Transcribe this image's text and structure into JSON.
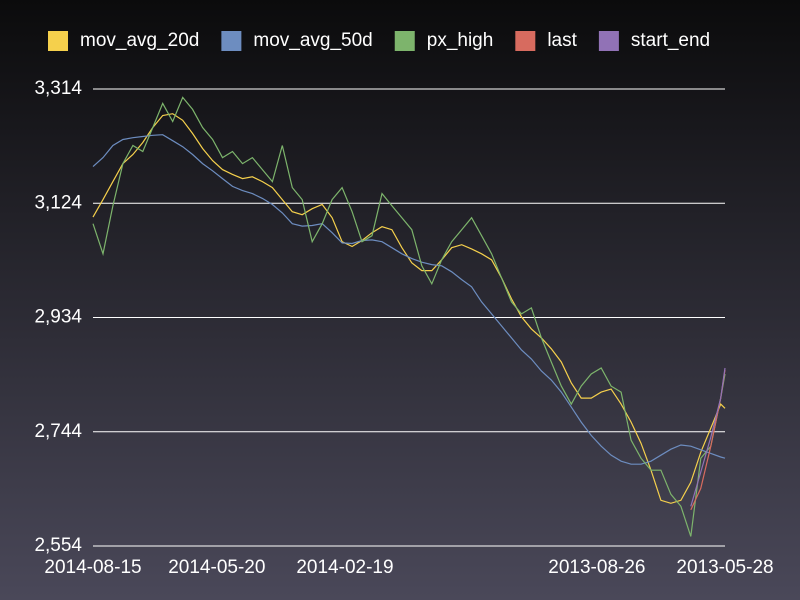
{
  "chart_data": {
    "type": "line",
    "x": [
      "2014-08-15",
      "2014-08-08",
      "2014-08-01",
      "2014-07-25",
      "2014-07-18",
      "2014-07-11",
      "2014-07-04",
      "2014-06-27",
      "2014-06-20",
      "2014-06-13",
      "2014-06-06",
      "2014-05-30",
      "2014-05-23",
      "2014-05-16",
      "2014-05-09",
      "2014-05-02",
      "2014-04-25",
      "2014-04-18",
      "2014-04-11",
      "2014-04-04",
      "2014-03-28",
      "2014-03-21",
      "2014-03-14",
      "2014-03-07",
      "2014-02-28",
      "2014-02-21",
      "2014-02-14",
      "2014-02-07",
      "2014-01-31",
      "2014-01-24",
      "2014-01-17",
      "2014-01-10",
      "2014-01-03",
      "2013-12-27",
      "2013-12-20",
      "2013-12-13",
      "2013-12-06",
      "2013-11-29",
      "2013-11-22",
      "2013-11-15",
      "2013-11-08",
      "2013-11-01",
      "2013-10-25",
      "2013-10-18",
      "2013-10-11",
      "2013-10-04",
      "2013-09-27",
      "2013-09-20",
      "2013-09-13",
      "2013-09-06",
      "2013-08-30",
      "2013-08-23",
      "2013-08-16",
      "2013-08-09",
      "2013-08-02",
      "2013-07-26",
      "2013-07-19",
      "2013-07-12",
      "2013-07-05",
      "2013-06-28",
      "2013-06-21",
      "2013-06-14",
      "2013-06-07",
      "2013-05-31",
      "2013-05-28"
    ],
    "xlim": [
      "2014-08-15",
      "2013-05-28"
    ],
    "xticks": [
      "2014-08-15",
      "2014-05-20",
      "2014-02-19",
      "2013-08-26",
      "2013-05-28"
    ],
    "ylim": [
      2554,
      3314
    ],
    "yticks": [
      {
        "value": 2554,
        "label": "2,554"
      },
      {
        "value": 2744,
        "label": "2,744"
      },
      {
        "value": 2934,
        "label": "2,934"
      },
      {
        "value": 3124,
        "label": "3,124"
      },
      {
        "value": 3314,
        "label": "3,314"
      }
    ],
    "grid": true,
    "legend": "top",
    "series": [
      {
        "name": "mov_avg_20d",
        "color": "#f5d04c",
        "values": [
          3101,
          3130,
          3160,
          3190,
          3205,
          3225,
          3250,
          3270,
          3273,
          3262,
          3240,
          3215,
          3195,
          3180,
          3172,
          3165,
          3168,
          3160,
          3150,
          3130,
          3110,
          3105,
          3115,
          3122,
          3100,
          3060,
          3052,
          3062,
          3075,
          3085,
          3080,
          3050,
          3025,
          3012,
          3012,
          3030,
          3050,
          3055,
          3048,
          3040,
          3030,
          3000,
          2965,
          2935,
          2915,
          2900,
          2882,
          2860,
          2825,
          2800,
          2800,
          2810,
          2815,
          2790,
          2760,
          2725,
          2680,
          2630,
          2625,
          2630,
          2660,
          2710,
          2750,
          2790,
          2783
        ]
      },
      {
        "name": "mov_avg_50d",
        "color": "#6d8dc0",
        "values": [
          3185,
          3200,
          3220,
          3230,
          3233,
          3235,
          3237,
          3238,
          3228,
          3218,
          3205,
          3190,
          3178,
          3165,
          3152,
          3145,
          3140,
          3132,
          3122,
          3108,
          3090,
          3086,
          3087,
          3090,
          3075,
          3058,
          3057,
          3062,
          3063,
          3060,
          3050,
          3040,
          3032,
          3026,
          3022,
          3020,
          3010,
          2997,
          2985,
          2960,
          2940,
          2920,
          2900,
          2880,
          2865,
          2845,
          2830,
          2810,
          2785,
          2760,
          2738,
          2720,
          2705,
          2695,
          2690,
          2690,
          2695,
          2705,
          2715,
          2722,
          2720,
          2714,
          2708,
          2702,
          2700
        ]
      },
      {
        "name": "px_high",
        "color": "#7db46c",
        "values": [
          3090,
          3040,
          3120,
          3190,
          3220,
          3210,
          3250,
          3290,
          3260,
          3300,
          3280,
          3250,
          3230,
          3200,
          3210,
          3190,
          3200,
          3180,
          3160,
          3220,
          3150,
          3130,
          3060,
          3090,
          3130,
          3150,
          3110,
          3060,
          3070,
          3140,
          3120,
          3100,
          3080,
          3020,
          2990,
          3030,
          3060,
          3080,
          3100,
          3070,
          3040,
          3000,
          2960,
          2940,
          2950,
          2900,
          2860,
          2820,
          2790,
          2820,
          2840,
          2850,
          2820,
          2810,
          2730,
          2700,
          2680,
          2680,
          2640,
          2620,
          2570,
          2700,
          2720,
          2800,
          2840
        ]
      },
      {
        "name": "last",
        "color": "#d76b5f",
        "values": [
          null,
          null,
          null,
          null,
          null,
          null,
          null,
          null,
          null,
          null,
          null,
          null,
          null,
          null,
          null,
          null,
          null,
          null,
          null,
          null,
          null,
          null,
          null,
          null,
          null,
          null,
          null,
          null,
          null,
          null,
          null,
          null,
          null,
          null,
          null,
          null,
          null,
          null,
          null,
          null,
          null,
          null,
          null,
          null,
          null,
          null,
          null,
          null,
          null,
          null,
          null,
          null,
          null,
          null,
          null,
          null,
          null,
          null,
          null,
          null,
          2614,
          2650,
          2720,
          2800,
          2847
        ]
      },
      {
        "name": "start_end",
        "color": "#9172b6",
        "values": [
          null,
          null,
          null,
          null,
          null,
          null,
          null,
          null,
          null,
          null,
          null,
          null,
          null,
          null,
          null,
          null,
          null,
          null,
          null,
          null,
          null,
          null,
          null,
          null,
          null,
          null,
          null,
          null,
          null,
          null,
          null,
          null,
          null,
          null,
          null,
          null,
          null,
          null,
          null,
          null,
          null,
          null,
          null,
          null,
          null,
          null,
          null,
          null,
          null,
          null,
          null,
          null,
          null,
          null,
          null,
          null,
          null,
          null,
          null,
          null,
          2620,
          2677,
          2735,
          2800,
          2850
        ]
      }
    ]
  }
}
